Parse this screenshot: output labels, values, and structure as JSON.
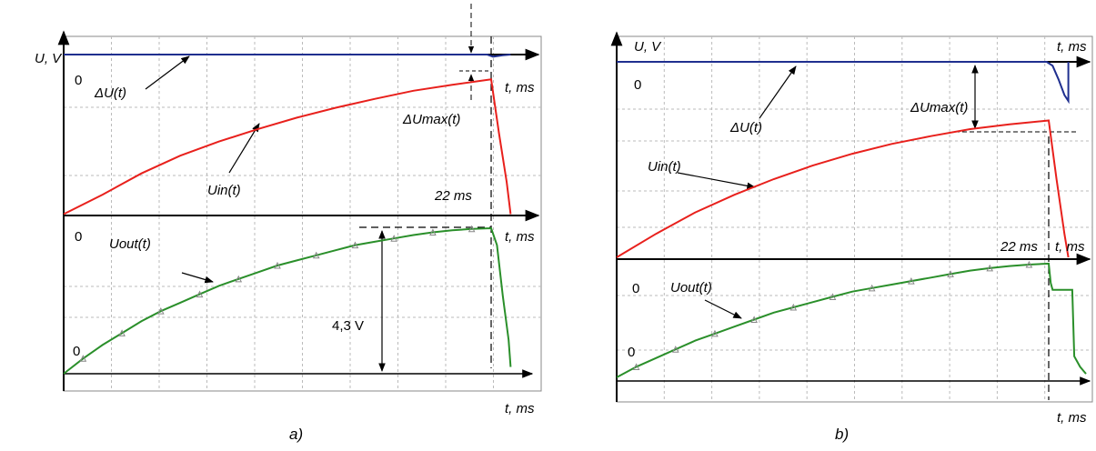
{
  "chart_data": [
    {
      "panel_label": "a)",
      "type": "line",
      "y_axis_label": "U, V",
      "x_unit_label": "t, ms",
      "x_range_ms": [
        0,
        23
      ],
      "pulse_end_ms": 22,
      "upper_plot": {
        "zero_label": "0",
        "series": [
          {
            "name": "ΔU(t)",
            "color": "#1f2f8f",
            "points": [
              [
                0,
                0
              ],
              [
                21.8,
                0
              ],
              [
                22.1,
                -0.06
              ],
              [
                22.6,
                -0.02
              ],
              [
                23,
                0
              ]
            ]
          },
          {
            "name": "Uin(t)",
            "color": "#e8201c",
            "points": [
              [
                0,
                -4.5
              ],
              [
                2,
                -3.95
              ],
              [
                4,
                -3.35
              ],
              [
                6,
                -2.85
              ],
              [
                8,
                -2.45
              ],
              [
                10,
                -2.1
              ],
              [
                12,
                -1.78
              ],
              [
                14,
                -1.5
              ],
              [
                16,
                -1.25
              ],
              [
                18,
                -1.02
              ],
              [
                20,
                -0.85
              ],
              [
                22,
                -0.7
              ],
              [
                22.4,
                -2.2
              ],
              [
                22.8,
                -3.6
              ],
              [
                23,
                -4.5
              ]
            ]
          }
        ],
        "annotations": [
          "ΔUmax(t)",
          "22 ms",
          "t, ms"
        ]
      },
      "lower_plot": {
        "zero_labels": [
          "0",
          "0"
        ],
        "series": [
          {
            "name": "Uout(t)",
            "color": "#2a8f2a",
            "points": [
              [
                0,
                0
              ],
              [
                1,
                0.45
              ],
              [
                2,
                0.85
              ],
              [
                3,
                1.2
              ],
              [
                4,
                1.55
              ],
              [
                5,
                1.85
              ],
              [
                6,
                2.1
              ],
              [
                7,
                2.35
              ],
              [
                8,
                2.6
              ],
              [
                9,
                2.8
              ],
              [
                10,
                3.0
              ],
              [
                11,
                3.2
              ],
              [
                12,
                3.35
              ],
              [
                13,
                3.5
              ],
              [
                14,
                3.65
              ],
              [
                15,
                3.8
              ],
              [
                16,
                3.9
              ],
              [
                17,
                4.0
              ],
              [
                18,
                4.1
              ],
              [
                19,
                4.18
              ],
              [
                20,
                4.24
              ],
              [
                21,
                4.28
              ],
              [
                22,
                4.3
              ],
              [
                22.3,
                3.8
              ],
              [
                22.6,
                2.3
              ],
              [
                22.9,
                1.0
              ],
              [
                23,
                0.2
              ]
            ]
          }
        ],
        "annotations": [
          "4,3 V",
          "t, ms"
        ]
      }
    },
    {
      "panel_label": "b)",
      "type": "line",
      "y_axis_label": "U, V",
      "x_unit_label": "t, ms",
      "x_range_ms": [
        0,
        23
      ],
      "pulse_end_ms": 22,
      "upper_plot": {
        "zero_label": "0",
        "series": [
          {
            "name": "ΔU(t)",
            "color": "#1f2f8f",
            "points": [
              [
                0,
                0
              ],
              [
                21.9,
                0
              ],
              [
                22.2,
                -0.1
              ],
              [
                22.5,
                -0.45
              ],
              [
                22.8,
                -0.85
              ],
              [
                23,
                -1.0
              ],
              [
                23,
                0
              ]
            ]
          },
          {
            "name": "Uin(t)",
            "color": "#e8201c",
            "points": [
              [
                0,
                -5.0
              ],
              [
                2,
                -4.4
              ],
              [
                4,
                -3.85
              ],
              [
                6,
                -3.4
              ],
              [
                8,
                -3.0
              ],
              [
                10,
                -2.65
              ],
              [
                12,
                -2.35
              ],
              [
                14,
                -2.1
              ],
              [
                16,
                -1.9
              ],
              [
                18,
                -1.72
              ],
              [
                20,
                -1.6
              ],
              [
                22,
                -1.5
              ],
              [
                22.4,
                -3.0
              ],
              [
                22.8,
                -4.4
              ],
              [
                23,
                -5.0
              ]
            ]
          }
        ],
        "annotations": [
          "ΔUmax(t)",
          "22 ms",
          "t, ms"
        ]
      },
      "lower_plot": {
        "zero_labels": [
          "0",
          "0"
        ],
        "series": [
          {
            "name": "Uout(t)",
            "color": "#2a8f2a",
            "points": [
              [
                0,
                0
              ],
              [
                1,
                0.3
              ],
              [
                2,
                0.55
              ],
              [
                3,
                0.8
              ],
              [
                4,
                1.05
              ],
              [
                5,
                1.25
              ],
              [
                6,
                1.45
              ],
              [
                7,
                1.65
              ],
              [
                8,
                1.85
              ],
              [
                9,
                2.0
              ],
              [
                10,
                2.15
              ],
              [
                11,
                2.3
              ],
              [
                12,
                2.45
              ],
              [
                13,
                2.55
              ],
              [
                14,
                2.65
              ],
              [
                15,
                2.75
              ],
              [
                16,
                2.85
              ],
              [
                17,
                2.95
              ],
              [
                18,
                3.05
              ],
              [
                19,
                3.12
              ],
              [
                20,
                3.18
              ],
              [
                21,
                3.22
              ],
              [
                22,
                3.25
              ],
              [
                22.1,
                2.7
              ],
              [
                22.2,
                2.5
              ],
              [
                23.2,
                2.5
              ],
              [
                23.3,
                0.6
              ],
              [
                23.6,
                0.3
              ],
              [
                23.9,
                0.1
              ]
            ]
          }
        ],
        "annotations": [
          "t, ms"
        ]
      }
    }
  ]
}
